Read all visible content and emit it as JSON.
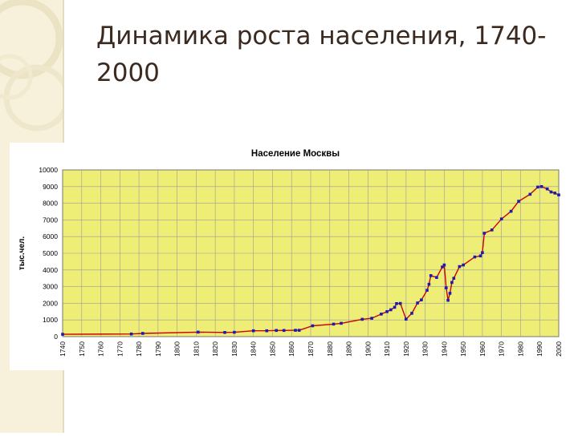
{
  "slide": {
    "title": "Динамика роста населения, 1740-2000"
  },
  "chart_data": {
    "type": "line",
    "title": "Население Москвы",
    "xlabel": "",
    "ylabel": "тыс.чел.",
    "xlim": [
      1740,
      2000
    ],
    "ylim": [
      0,
      10000
    ],
    "x_ticks": [
      "1740",
      "1750",
      "1760",
      "1770",
      "1780",
      "1790",
      "1800",
      "1810",
      "1820",
      "1830",
      "1840",
      "1850",
      "1860",
      "1870",
      "1880",
      "1890",
      "1900",
      "1910",
      "1920",
      "1930",
      "1940",
      "1950",
      "1960",
      "1970",
      "1980",
      "1990",
      "2000"
    ],
    "y_ticks": [
      "0",
      "1000",
      "2000",
      "3000",
      "4000",
      "5000",
      "6000",
      "7000",
      "8000",
      "9000",
      "10000"
    ],
    "grid": true,
    "colors": {
      "plot_bg": "#eeee77",
      "line": "#cc0000",
      "marker": "#1a1ab8",
      "grid": "#9a9a9a"
    },
    "series": [
      {
        "x": [
          1740,
          1776,
          1782,
          1811,
          1825,
          1830,
          1840,
          1847,
          1852,
          1856,
          1862,
          1864,
          1871,
          1882,
          1886,
          1897,
          1902,
          1907,
          1910,
          1912,
          1914,
          1915,
          1917,
          1920,
          1923,
          1926,
          1928,
          1931,
          1932,
          1933,
          1936,
          1939,
          1940,
          1941,
          1942,
          1943,
          1944,
          1945,
          1948,
          1950,
          1956,
          1959,
          1960,
          1961,
          1965,
          1970,
          1975,
          1979,
          1985,
          1989,
          1991,
          1994,
          1996,
          1998,
          2000
        ],
        "y": [
          140,
          160,
          190,
          270,
          250,
          260,
          350,
          350,
          370,
          370,
          380,
          380,
          650,
          750,
          800,
          1040,
          1100,
          1350,
          1500,
          1610,
          1760,
          1980,
          1990,
          1050,
          1400,
          2020,
          2200,
          2780,
          3140,
          3660,
          3550,
          4180,
          4300,
          2930,
          2180,
          2600,
          3250,
          3500,
          4200,
          4300,
          4780,
          4840,
          5040,
          6200,
          6400,
          7060,
          7520,
          8120,
          8540,
          8970,
          9000,
          8860,
          8680,
          8610,
          8500
        ]
      }
    ]
  }
}
